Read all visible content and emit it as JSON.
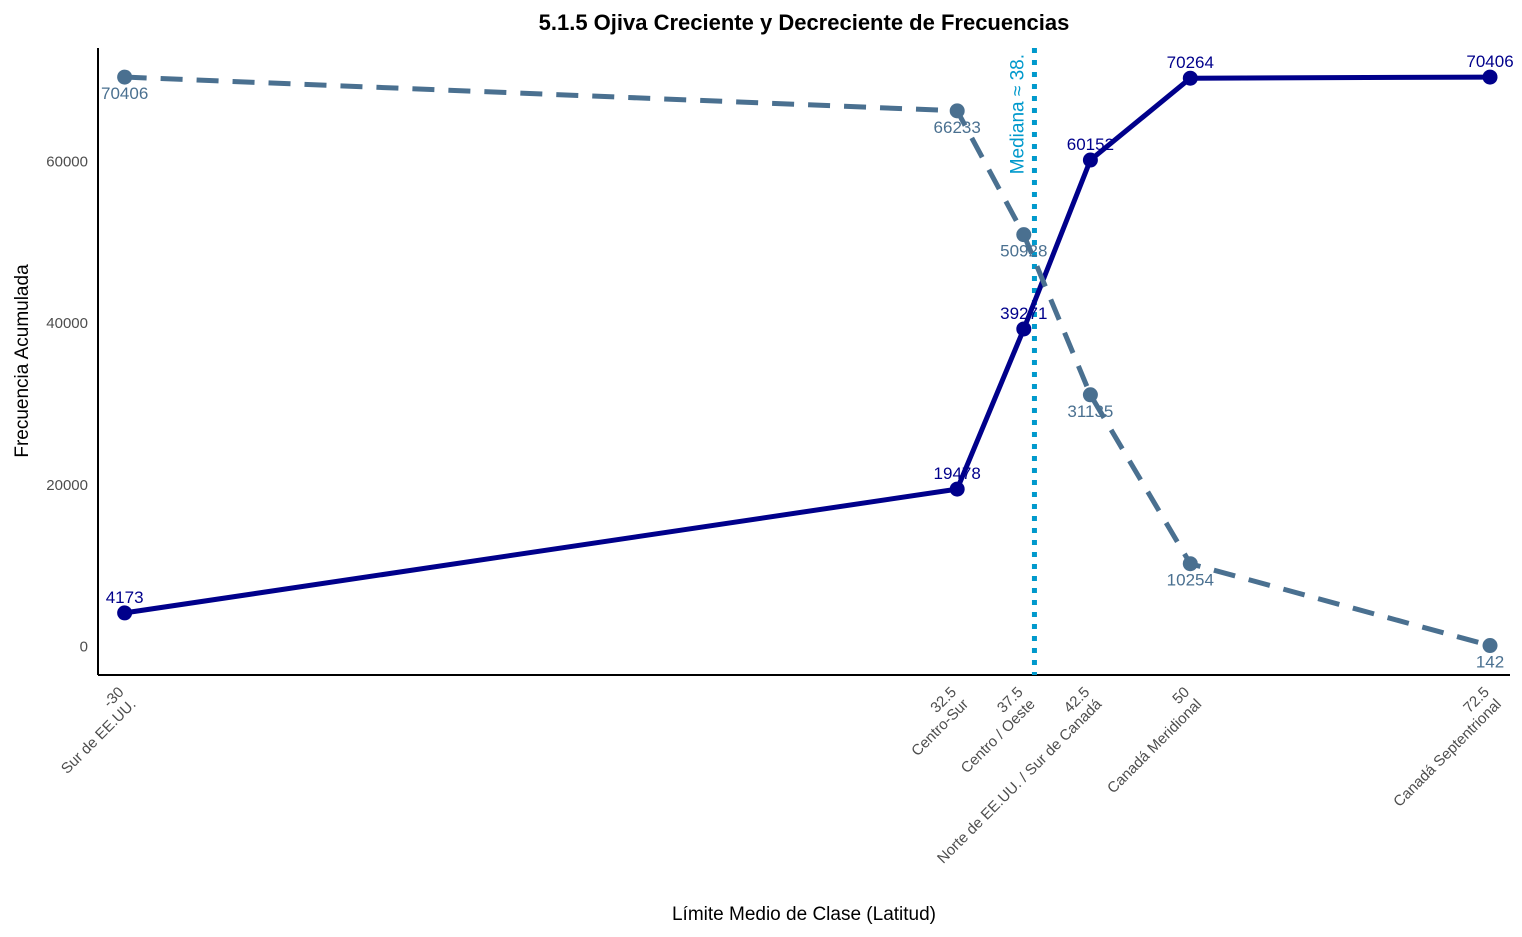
{
  "chart_data": {
    "type": "line",
    "title": "5.1.5 Ojiva Creciente y Decreciente de Frecuencias",
    "xlabel": "Límite Medio de Clase (Latitud)",
    "ylabel": "Frecuencia Acumulada",
    "x": [
      -30,
      32.5,
      37.5,
      42.5,
      50,
      72.5
    ],
    "x_tick_values": [
      "-30",
      "32.5",
      "37.5",
      "42.5",
      "50",
      "72.5"
    ],
    "x_tick_names": [
      "Sur de EE.UU.",
      "Centro-Sur",
      "Centro / Oeste",
      "Norte de EE.UU. / Sur de Canadá",
      "Canadá Meridional",
      "Canadá Septentrional"
    ],
    "xlim": [
      -32,
      74
    ],
    "ylim": [
      -3500,
      74000
    ],
    "y_ticks": [
      0,
      20000,
      40000,
      60000
    ],
    "y_tick_labels": [
      "0",
      "20000",
      "40000",
      "60000"
    ],
    "series": [
      {
        "values": [
          4173,
          19478,
          39271,
          60152,
          70264,
          70406
        ],
        "labels": [
          "4173",
          "19478",
          "39271",
          "60152",
          "70264",
          "70406"
        ],
        "color": "#00008B",
        "style": "solid",
        "label_position": "above"
      },
      {
        "values": [
          70406,
          66233,
          50928,
          31135,
          10254,
          142
        ],
        "labels": [
          "70406",
          "66233",
          "50928",
          "31135",
          "10254",
          "142"
        ],
        "color": "#4A7090",
        "style": "dashed",
        "label_position": "below"
      }
    ],
    "median": {
      "x": 38.3,
      "label": "Mediana ≈ 38.",
      "color": "#0099CC",
      "style": "dotted"
    },
    "grid": false,
    "legend": "none"
  }
}
